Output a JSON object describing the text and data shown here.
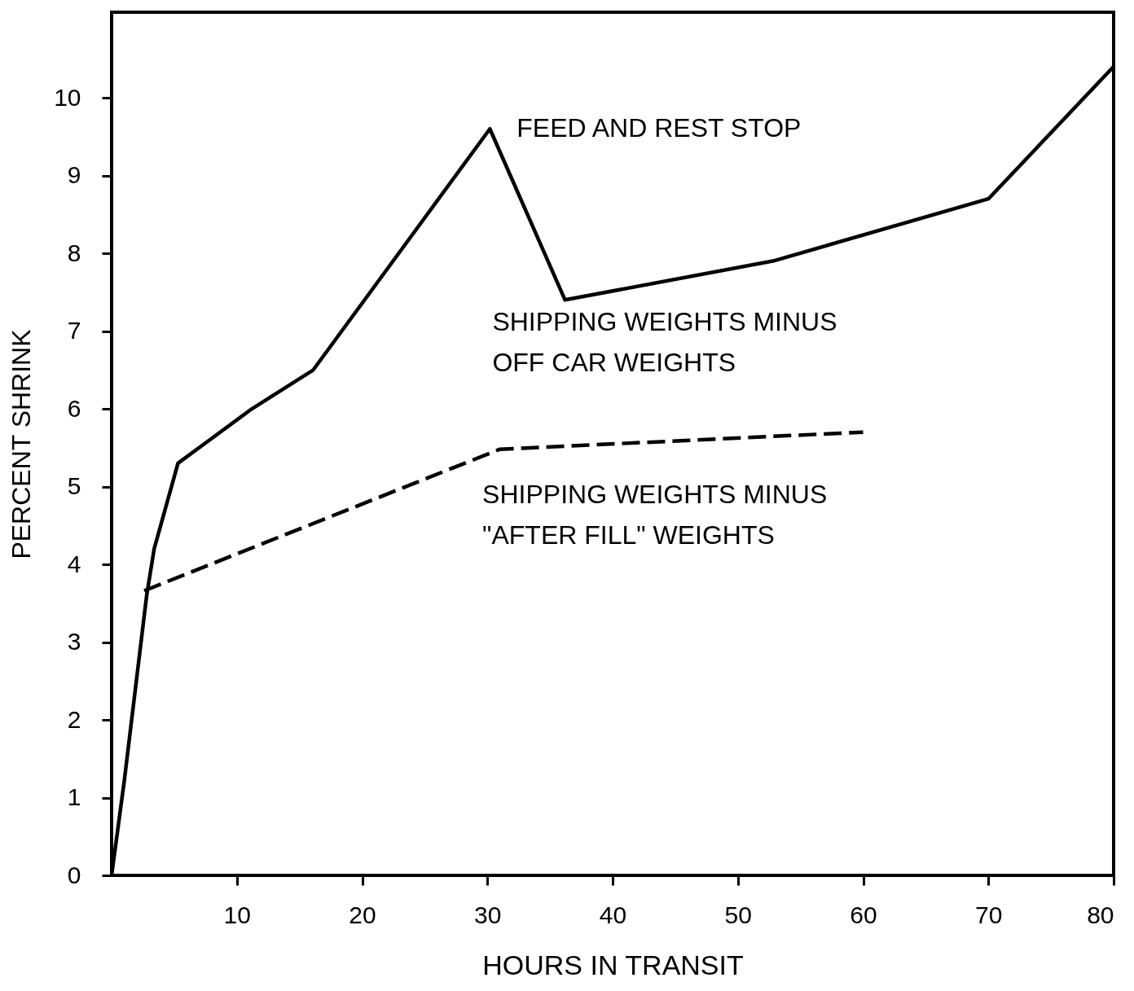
{
  "chart_data": {
    "type": "line",
    "xlabel": "HOURS IN TRANSIT",
    "ylabel": "PERCENT SHRINK",
    "xlim": [
      0,
      80
    ],
    "ylim": [
      0,
      11.1
    ],
    "xticks": [
      10,
      20,
      30,
      40,
      50,
      60,
      70,
      80
    ],
    "yticks": [
      0,
      1,
      2,
      3,
      4,
      5,
      6,
      7,
      8,
      9,
      10
    ],
    "grid": false,
    "marker": "none",
    "series": [
      {
        "name": "SHIPPING WEIGHTS MINUS\nOFF CAR WEIGHTS",
        "color": "#000000",
        "line_style": "solid",
        "x": [
          0,
          1,
          2.8,
          3.4,
          5.3,
          11.2,
          16.1,
          30.2,
          36.2,
          52.8,
          70,
          80
        ],
        "values": [
          0,
          1.2,
          3.6,
          4.2,
          5.3,
          6.0,
          6.5,
          9.6,
          7.4,
          7.9,
          8.7,
          10.4
        ]
      },
      {
        "name": "SHIPPING WEIGHTS MINUS\n\"AFTER FILL\" WEIGHTS",
        "color": "#000000",
        "line_style": "dashed",
        "x": [
          2.6,
          31,
          60
        ],
        "values": [
          3.66,
          5.48,
          5.7
        ]
      }
    ],
    "annotations": [
      {
        "text": "FEED AND REST STOP",
        "x": 30,
        "y": 9.6
      }
    ]
  }
}
